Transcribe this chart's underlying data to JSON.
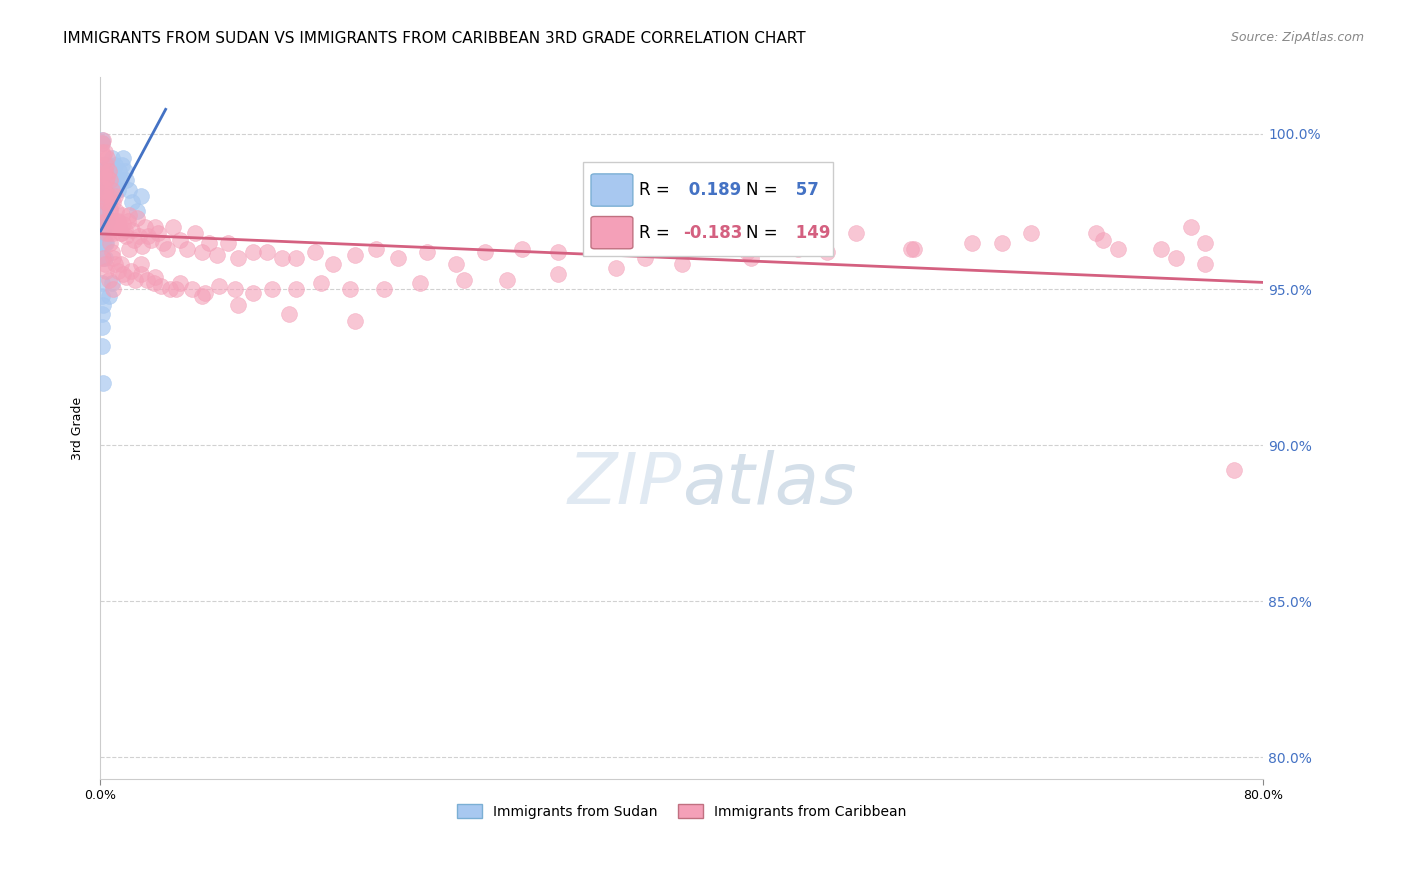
{
  "title": "IMMIGRANTS FROM SUDAN VS IMMIGRANTS FROM CARIBBEAN 3RD GRADE CORRELATION CHART",
  "source": "Source: ZipAtlas.com",
  "ylabel": "3rd Grade",
  "ytick_labels": [
    "100.0%",
    "95.0%",
    "90.0%",
    "85.0%",
    "80.0%"
  ],
  "ytick_values": [
    1.0,
    0.95,
    0.9,
    0.85,
    0.8
  ],
  "xlim": [
    0.0,
    0.8
  ],
  "ylim": [
    0.793,
    1.018
  ],
  "sudan_R": 0.189,
  "sudan_N": 57,
  "caribbean_R": -0.183,
  "caribbean_N": 149,
  "sudan_color": "#a8c8f0",
  "caribbean_color": "#f4a0b8",
  "sudan_line_color": "#4472c4",
  "caribbean_line_color": "#d46080",
  "title_fontsize": 11,
  "source_fontsize": 9,
  "right_axis_color": "#4472c4",
  "grid_color": "#cccccc",
  "background_color": "#ffffff",
  "sudan_x": [
    0.0005,
    0.0008,
    0.001,
    0.001,
    0.001,
    0.001,
    0.001,
    0.0012,
    0.0015,
    0.002,
    0.002,
    0.002,
    0.002,
    0.002,
    0.0025,
    0.003,
    0.003,
    0.003,
    0.003,
    0.003,
    0.004,
    0.004,
    0.004,
    0.005,
    0.005,
    0.005,
    0.006,
    0.006,
    0.006,
    0.007,
    0.007,
    0.008,
    0.008,
    0.009,
    0.01,
    0.01,
    0.011,
    0.012,
    0.013,
    0.014,
    0.015,
    0.016,
    0.017,
    0.018,
    0.02,
    0.022,
    0.025,
    0.028,
    0.001,
    0.001,
    0.001,
    0.002,
    0.001,
    0.001,
    0.006,
    0.008,
    0.002
  ],
  "sudan_y": [
    0.99,
    0.988,
    0.985,
    0.983,
    0.98,
    0.978,
    0.975,
    0.997,
    0.998,
    0.975,
    0.972,
    0.968,
    0.965,
    0.96,
    0.97,
    0.98,
    0.975,
    0.97,
    0.965,
    0.96,
    0.978,
    0.972,
    0.965,
    0.985,
    0.98,
    0.972,
    0.99,
    0.985,
    0.978,
    0.988,
    0.98,
    0.992,
    0.985,
    0.988,
    0.99,
    0.982,
    0.985,
    0.982,
    0.988,
    0.985,
    0.99,
    0.992,
    0.988,
    0.985,
    0.982,
    0.978,
    0.975,
    0.98,
    0.952,
    0.948,
    0.942,
    0.945,
    0.938,
    0.932,
    0.948,
    0.952,
    0.92
  ],
  "caribbean_x": [
    0.001,
    0.001,
    0.001,
    0.002,
    0.002,
    0.002,
    0.003,
    0.003,
    0.003,
    0.004,
    0.004,
    0.005,
    0.005,
    0.006,
    0.006,
    0.007,
    0.007,
    0.008,
    0.008,
    0.009,
    0.009,
    0.01,
    0.01,
    0.011,
    0.012,
    0.013,
    0.014,
    0.015,
    0.016,
    0.017,
    0.018,
    0.019,
    0.02,
    0.022,
    0.023,
    0.025,
    0.027,
    0.029,
    0.031,
    0.033,
    0.035,
    0.038,
    0.04,
    0.043,
    0.046,
    0.05,
    0.055,
    0.06,
    0.065,
    0.07,
    0.075,
    0.08,
    0.088,
    0.095,
    0.105,
    0.115,
    0.125,
    0.135,
    0.148,
    0.16,
    0.175,
    0.19,
    0.205,
    0.225,
    0.245,
    0.265,
    0.29,
    0.315,
    0.345,
    0.375,
    0.41,
    0.445,
    0.48,
    0.52,
    0.56,
    0.6,
    0.64,
    0.69,
    0.73,
    0.76,
    0.001,
    0.002,
    0.003,
    0.003,
    0.004,
    0.005,
    0.006,
    0.007,
    0.008,
    0.009,
    0.01,
    0.012,
    0.014,
    0.016,
    0.018,
    0.021,
    0.024,
    0.028,
    0.032,
    0.037,
    0.042,
    0.048,
    0.055,
    0.063,
    0.072,
    0.082,
    0.093,
    0.105,
    0.118,
    0.135,
    0.152,
    0.172,
    0.195,
    0.22,
    0.25,
    0.28,
    0.315,
    0.355,
    0.4,
    0.448,
    0.5,
    0.558,
    0.62,
    0.685,
    0.75,
    0.001,
    0.002,
    0.003,
    0.005,
    0.007,
    0.01,
    0.014,
    0.02,
    0.028,
    0.038,
    0.052,
    0.07,
    0.095,
    0.13,
    0.175,
    0.002,
    0.003,
    0.004,
    0.006,
    0.009,
    0.7,
    0.74,
    0.76,
    0.78
  ],
  "caribbean_y": [
    0.997,
    0.994,
    0.99,
    0.998,
    0.993,
    0.987,
    0.994,
    0.988,
    0.982,
    0.99,
    0.985,
    0.992,
    0.986,
    0.988,
    0.98,
    0.985,
    0.976,
    0.982,
    0.972,
    0.978,
    0.968,
    0.98,
    0.97,
    0.975,
    0.972,
    0.97,
    0.968,
    0.974,
    0.971,
    0.969,
    0.967,
    0.972,
    0.974,
    0.969,
    0.966,
    0.973,
    0.967,
    0.964,
    0.97,
    0.967,
    0.966,
    0.97,
    0.968,
    0.965,
    0.963,
    0.97,
    0.966,
    0.963,
    0.968,
    0.962,
    0.965,
    0.961,
    0.965,
    0.96,
    0.962,
    0.962,
    0.96,
    0.96,
    0.962,
    0.958,
    0.961,
    0.963,
    0.96,
    0.962,
    0.958,
    0.962,
    0.963,
    0.962,
    0.965,
    0.96,
    0.965,
    0.962,
    0.963,
    0.968,
    0.963,
    0.965,
    0.968,
    0.966,
    0.963,
    0.965,
    0.975,
    0.98,
    0.978,
    0.972,
    0.968,
    0.972,
    0.968,
    0.965,
    0.962,
    0.96,
    0.958,
    0.956,
    0.958,
    0.955,
    0.954,
    0.956,
    0.953,
    0.955,
    0.953,
    0.952,
    0.951,
    0.95,
    0.952,
    0.95,
    0.949,
    0.951,
    0.95,
    0.949,
    0.95,
    0.95,
    0.952,
    0.95,
    0.95,
    0.952,
    0.953,
    0.953,
    0.955,
    0.957,
    0.958,
    0.96,
    0.962,
    0.963,
    0.965,
    0.968,
    0.97,
    0.985,
    0.983,
    0.981,
    0.978,
    0.975,
    0.972,
    0.968,
    0.963,
    0.958,
    0.954,
    0.95,
    0.948,
    0.945,
    0.942,
    0.94,
    0.96,
    0.958,
    0.956,
    0.953,
    0.95,
    0.963,
    0.96,
    0.958,
    0.892
  ]
}
